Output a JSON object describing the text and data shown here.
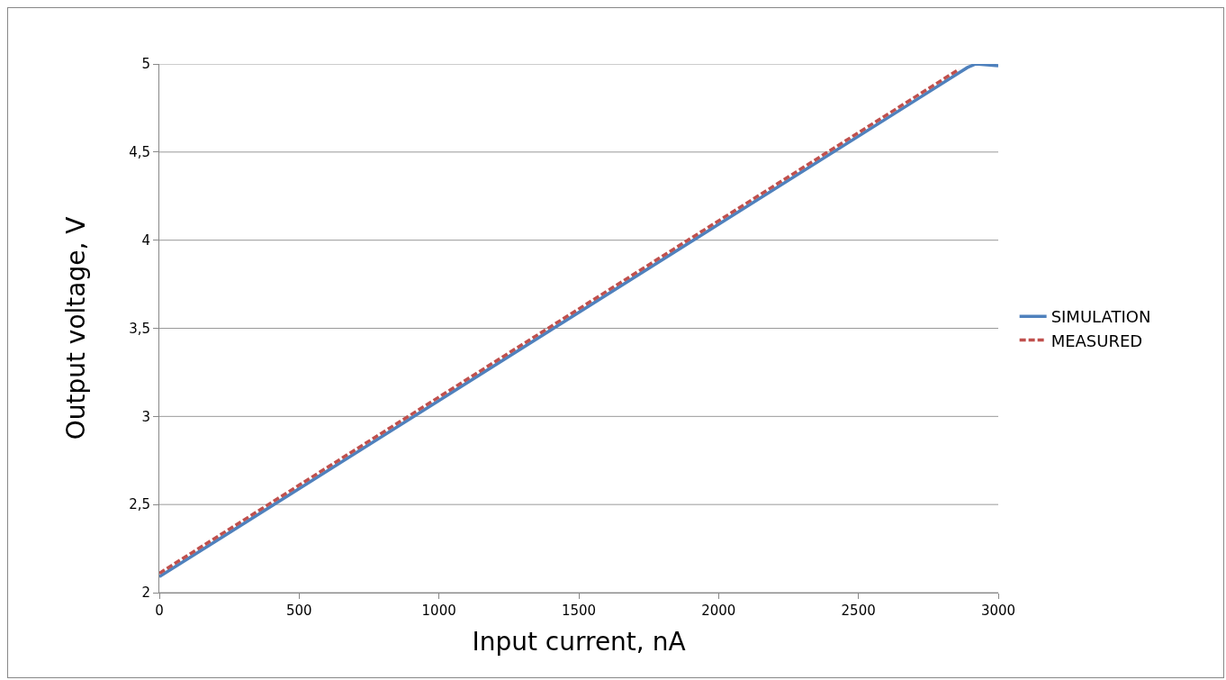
{
  "chart_data": {
    "type": "line",
    "xlabel": "Input current, nA",
    "ylabel": "Output voltage, V",
    "xlim": [
      0,
      3000
    ],
    "xticks": [
      0,
      500,
      1000,
      1500,
      2000,
      2500,
      3000
    ],
    "ylim": [
      2,
      5
    ],
    "yticks": [
      2,
      {
        "value": 2.5,
        "label": "2,5"
      },
      3,
      {
        "value": 3.5,
        "label": "3,5"
      },
      4,
      {
        "value": 4.5,
        "label": "4,5"
      },
      5
    ],
    "grid": "y",
    "legend": "right",
    "marker": "none",
    "series": [
      {
        "name": "SIMULATION",
        "color": "#4f81bd",
        "line_style": "solid",
        "x": [
          0,
          1000,
          2000,
          2860,
          2890,
          2920,
          3000
        ],
        "values": [
          2.09,
          3.09,
          4.09,
          4.95,
          4.98,
          5.0,
          4.99
        ]
      },
      {
        "name": "MEASURED",
        "color": "#c0504d",
        "line_style": "dashed",
        "x": [
          0,
          1000,
          2000,
          2860
        ],
        "values": [
          2.11,
          3.11,
          4.11,
          4.97
        ]
      }
    ]
  }
}
